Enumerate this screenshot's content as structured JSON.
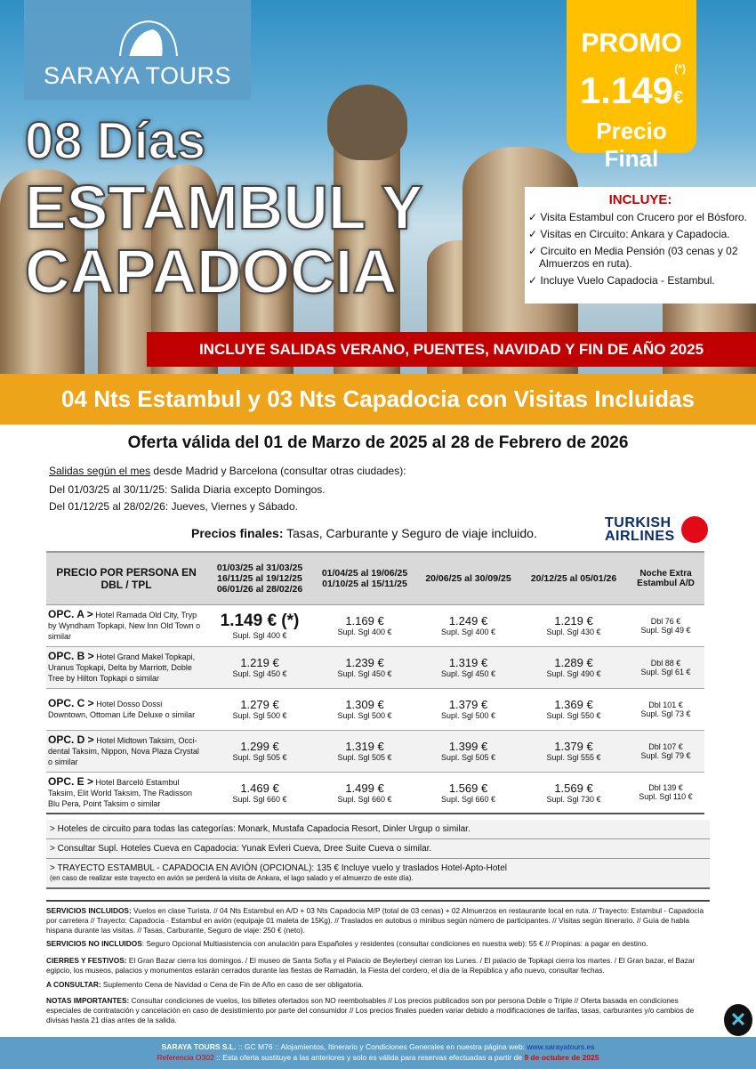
{
  "brand": {
    "name": "SARAYA TOURS"
  },
  "hero": {
    "title_line1": "08 Días",
    "title_line2": "ESTAMBUL Y",
    "title_line3": "CAPADOCIA"
  },
  "promo": {
    "label": "PROMO",
    "note": "(*)",
    "price": "1.149",
    "currency": "€",
    "subtitle": "Precio Final"
  },
  "includes": {
    "title": "INCLUYE:",
    "items": [
      "✓ Visita Estambul con Crucero por el Bósforo.",
      "✓ Visitas en Circuito: Ankara y Capadocia.",
      "✓ Circuito en Media Pensión (03 cenas y 02 Almuerzos en ruta).",
      "✓ Incluye Vuelo Capadocia - Estambul."
    ]
  },
  "banner_red": "INCLUYE SALIDAS VERANO, PUENTES, NAVIDAD Y FIN DE AÑO 2025",
  "banner_orange": "04 Nts Estambul y 03 Nts Capadocia con Visitas Incluidas",
  "offer": "Oferta válida del 01 de Marzo de 2025 al 28 de Febrero de 2026",
  "departures": {
    "lead_underlined": "Salidas según el mes",
    "lead_rest": " desde Madrid y Barcelona (consultar otras ciudades):",
    "line1": "Del 01/03/25 al 30/11/25: Salida Diaria excepto Domingos.",
    "line2": "Del 01/12/25 al 28/02/26: Jueves, Viernes y Sábado."
  },
  "final_prices": {
    "bold": "Precios finales:",
    "rest": " Tasas, Carburante y Seguro de viaje incluido."
  },
  "airline": {
    "line1": "TURKISH",
    "line2": "AIRLINES"
  },
  "table": {
    "headers": [
      "PRECIO POR PERSONA EN DBL / TPL",
      "01/03/25 al 31/03/25\n16/11/25 al 19/12/25\n06/01/26 al 28/02/26",
      "01/04/25 al 19/06/25\n01/10/25 al 15/11/25",
      "20/06/25 al 30/09/25",
      "20/12/25 al 05/01/26",
      "Noche Extra Estambul A/D"
    ],
    "rows": [
      {
        "opt": "OPC. A >",
        "hotels": " Hotel Ramada Old City, Tryp by Wyndham Topkapi, New Inn Old Town o similar",
        "prices": [
          [
            "1.149 € (*)",
            "Supl. Sgl 400 €"
          ],
          [
            "1.169 €",
            "Supl. Sgl 400 €"
          ],
          [
            "1.249 €",
            "Supl. Sgl 400 €"
          ],
          [
            "1.219 €",
            "Supl. Sgl 430 €"
          ],
          [
            "Dbl 76 €",
            "Supl. Sgl 49 €"
          ]
        ]
      },
      {
        "opt": "OPC. B >",
        "hotels": " Hotel Grand Makel Topkapi, Uranus Topkapi, Delta by Marriott, Doble Tree by Hilton Topkapi o similar",
        "prices": [
          [
            "1.219 €",
            "Supl. Sgl 450 €"
          ],
          [
            "1.239 €",
            "Supl. Sgl 450 €"
          ],
          [
            "1.319 €",
            "Supl. Sgl 450 €"
          ],
          [
            "1.289 €",
            "Supl. Sgl 490 €"
          ],
          [
            "Dbl 88 €",
            "Supl. Sgl 61 €"
          ]
        ]
      },
      {
        "opt": "OPC. C >",
        "hotels": " Hotel Dosso Dossi Downtown, Ottoman Life Deluxe o similar",
        "prices": [
          [
            "1.279 €",
            "Supl. Sgl 500 €"
          ],
          [
            "1.309 €",
            "Supl. Sgl 500 €"
          ],
          [
            "1.379 €",
            "Supl. Sgl 500 €"
          ],
          [
            "1.369 €",
            "Supl. Sgl 550 €"
          ],
          [
            "Dbl 101 €",
            "Supl. Sgl 73 €"
          ]
        ]
      },
      {
        "opt": "OPC. D >",
        "hotels": " Hotel Midtown Taksim, Occi-dental Taksim, Nippon, Nova Plaza Crystal o similar",
        "prices": [
          [
            "1.299 €",
            "Supl. Sgl 505 €"
          ],
          [
            "1.319 €",
            "Supl. Sgl 505 €"
          ],
          [
            "1.399 €",
            "Supl. Sgl 505 €"
          ],
          [
            "1.379 €",
            "Supl. Sgl 555 €"
          ],
          [
            "Dbl 107 €",
            "Supl. Sgl 79 €"
          ]
        ]
      },
      {
        "opt": "OPC. E >",
        "hotels": " Hotel Barceló Estambul Taksim, Elit World Taksim, The Radisson Blu Pera, Point Taksim o similar",
        "prices": [
          [
            "1.469 €",
            "Supl. Sgl 660 €"
          ],
          [
            "1.499 €",
            "Supl. Sgl 660 €"
          ],
          [
            "1.569 €",
            "Supl. Sgl 660 €"
          ],
          [
            "1.569 €",
            "Supl. Sgl 730 €"
          ],
          [
            "Dbl 139 €",
            "Supl. Sgl 110 €"
          ]
        ]
      }
    ]
  },
  "notes": [
    "> Hoteles de circuito para todas las categorías: Monark, Mustafa Capadocia Resort, Dinler Urgup o similar.",
    "> Consultar Supl. Hoteles Cueva en Capadocia: Yunak Evleri Cueva, Dree Suite Cueva o similar.",
    "> TRAYECTO ESTAMBUL - CAPADOCIA EN AVIÓN (OPCIONAL): 135 € Incluye vuelo y traslados Hotel-Apto-Hotel"
  ],
  "notes_sub": "(en caso de realizar este trayecto en avión se perderá la visita de Ankara, el lago salado y el almuerzo de este día).",
  "fine": [
    {
      "label": "SERVICIOS INCLUIDOS:",
      "text": " Vuelos en clase Turista. // 04 Nts Estambul en A/D + 03 Nts Capadocia  M/P (total de 03 cenas) + 02 Almuerzos en restaurante local en ruta. // Trayecto: Estambul - Capadocia por carretera // Trayecto: Capadocia - Estambul en avión (equipaje 01 maleta de 15Kg). // Traslados en autobus o minibus según número de participantes. // Visitas según itinerario. // Guía de habla hispana durante las visitas. // Tasas, Carburante, Seguro de viaje: 250 € (neto)."
    },
    {
      "label": "SERVICIOS NO INCLUIDOS",
      "text": ": Seguro Opcional Multiasistencia con anulación para Españoles y residentes (consultar condiciones en nuestra web): 55 € // Propinas: a pagar en destino."
    },
    {
      "label": "CIERRES Y FESTIVOS:",
      "text": " El Gran Bazar cierra los domingos. / El museo de Santa Sofía y el Palacio de Beylerbeyi cierran los Lunes. / El palacio de Topkapi cierra los martes. / El Gran bazar, el Bazar egipcio, los museos, palacios y monumentos estarán cerrados durante las fiestas de Ramadán, la Fiesta del cordero, el día de la República y año nuevo, consultar fechas."
    },
    {
      "label": "A CONSULTAR:",
      "text": " Suplemento Cena de Navidad o Cena de Fin de Año en caso de ser obligatoria."
    },
    {
      "label": "NOTAS IMPORTANTES:",
      "text": " Consultar condiciones de vuelos, los billetes ofertados son NO reembolsables // Los precios publicados son por persona Doble o Triple // Oferta basada en condiciones especiales de contratación y cancelación en caso de desistimiento por parte del consumidor // Los precios finales pueden variar debido a modificaciones de tarifas, tasas, carburantes y/o cambios de divisas hasta 21 días antes de la salida."
    }
  ],
  "footer": {
    "company": "SARAYA TOURS S.L.",
    "mid": " :: GC M76 ::  Alojamientos, Itinerario y Condiciones Generales en nuestra página web: ",
    "link": "www.sarayatours.es",
    "ref": "Referencia O302",
    "ref_text": " :: Esta oferta sustituye a las anteriores y solo es válida para reservas efectuadas a partir de ",
    "date": "9 de octubre de 2025"
  },
  "colors": {
    "red": "#c00000",
    "orange": "#eda31a",
    "promo": "#ffc000",
    "brand_blue": "#5e9ec6"
  }
}
